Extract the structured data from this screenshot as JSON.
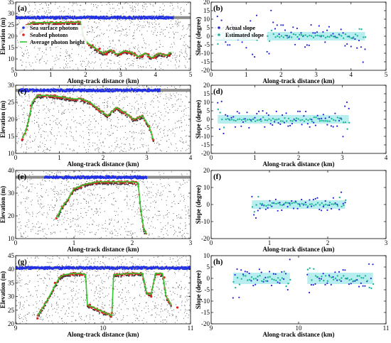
{
  "colors": {
    "sea": "#1f2ee6",
    "seabed": "#e02020",
    "avg": "#2ec82e",
    "actual": "#2424d6",
    "estimated": "#1fb596",
    "noise": "#6a6a6a",
    "band": "#b8eef0"
  },
  "chart_data": [
    {
      "id": "a",
      "type": "scatter",
      "panel_label": "(a)",
      "xlabel": "Along-track distance (km)",
      "ylabel": "Elevation (m)",
      "xlim": [
        0,
        5
      ],
      "ylim": [
        5,
        35
      ],
      "xticks": [
        0,
        1,
        2,
        3,
        4,
        5
      ],
      "yticks": [
        5,
        10,
        15,
        20,
        25,
        30,
        35
      ],
      "legend": {
        "placement": "bottom-left",
        "entries": [
          "Sea surface photons",
          "Seabed photons",
          "Average photon height"
        ]
      },
      "series": [
        {
          "name": "Sea surface photons",
          "kind": "points",
          "color_key": "sea",
          "x": [
            0,
            4.5
          ],
          "y": [
            28.2,
            28.2
          ]
        },
        {
          "name": "Seabed photons",
          "kind": "dots",
          "color_key": "seabed",
          "x": [
            0.15,
            0.3,
            0.5,
            0.8,
            1.0,
            1.3,
            1.6,
            1.8,
            1.95,
            2.2,
            2.4,
            2.6,
            2.8,
            3.0,
            3.2,
            3.4,
            3.6,
            3.8,
            4.0,
            4.2,
            4.4
          ],
          "y": [
            22,
            24.5,
            26,
            26,
            26,
            26,
            26.2,
            26.3,
            24,
            16,
            14.5,
            12,
            13.5,
            12,
            13,
            12.5,
            11,
            12,
            10.5,
            12,
            11.5
          ]
        },
        {
          "name": "Average photon height",
          "kind": "line",
          "color_key": "avg",
          "x": [
            0.12,
            0.25,
            0.45,
            0.7,
            1.0,
            1.3,
            1.6,
            1.85,
            1.92,
            2.05,
            2.3,
            2.5,
            2.7,
            2.9,
            3.1,
            3.3,
            3.5,
            3.7,
            3.9,
            4.1,
            4.3,
            4.45
          ],
          "y": [
            22,
            24.2,
            25.8,
            26,
            26,
            26,
            26.1,
            26.3,
            21,
            17,
            14.5,
            12.5,
            14,
            12,
            13.5,
            13,
            11,
            12.5,
            10.5,
            12.5,
            11.5,
            13
          ]
        }
      ]
    },
    {
      "id": "b",
      "type": "scatter",
      "panel_label": "(b)",
      "xlabel": "Along-track distance (km)",
      "ylabel": "Slope (degree)",
      "xlim": [
        0,
        5
      ],
      "ylim": [
        -20,
        20
      ],
      "xticks": [
        0,
        1,
        2,
        3,
        4,
        5
      ],
      "yticks": [
        -20,
        -15,
        -10,
        -5,
        0,
        5,
        10,
        15,
        20
      ],
      "legend": {
        "placement": "bottom-left",
        "entries": [
          "Actual slope",
          "Estimated slope"
        ]
      },
      "segments": [
        [
          0.12,
          1.3
        ],
        [
          1.6,
          4.4
        ]
      ],
      "series": [
        {
          "name": "Actual slope",
          "color_key": "actual",
          "spread": 7
        },
        {
          "name": "Estimated slope",
          "color_key": "estimated",
          "spread": 3
        }
      ]
    },
    {
      "id": "c",
      "type": "scatter",
      "panel_label": "(c)",
      "xlabel": "Along-track distance (km)",
      "ylabel": "Elevation (m)",
      "xlim": [
        0,
        4
      ],
      "ylim": [
        10,
        30
      ],
      "xticks": [
        0,
        1,
        2,
        3,
        4
      ],
      "yticks": [
        10,
        15,
        20,
        25,
        30
      ],
      "series": [
        {
          "name": "Sea surface photons",
          "kind": "points",
          "color_key": "sea",
          "x": [
            0.1,
            3.3
          ],
          "y": [
            28.5,
            28.5
          ]
        },
        {
          "name": "Seabed photons",
          "kind": "dots",
          "color_key": "seabed",
          "x": [
            0.15,
            0.25,
            0.35,
            0.5,
            0.7,
            0.9,
            1.1,
            1.3,
            1.5,
            1.7,
            1.9,
            2.1,
            2.3,
            2.5,
            2.7,
            2.9,
            3.05,
            3.15
          ],
          "y": [
            14,
            17,
            24,
            27,
            27,
            27,
            26.5,
            26,
            26,
            25,
            23,
            21,
            23,
            22,
            20,
            21,
            18,
            14
          ]
        },
        {
          "name": "Average photon height",
          "kind": "line",
          "color_key": "avg",
          "x": [
            0.15,
            0.22,
            0.3,
            0.38,
            0.5,
            0.7,
            0.9,
            1.1,
            1.3,
            1.5,
            1.7,
            1.9,
            2.1,
            2.3,
            2.5,
            2.7,
            2.9,
            3.05,
            3.15
          ],
          "y": [
            14.5,
            16,
            20,
            25,
            27,
            27,
            26.8,
            26.5,
            26,
            26,
            25,
            23,
            21,
            23.5,
            22,
            20,
            21,
            18,
            14
          ]
        }
      ]
    },
    {
      "id": "d",
      "type": "scatter",
      "panel_label": "(d)",
      "xlabel": "Along-track distance (km)",
      "ylabel": "Slope (degree)",
      "xlim": [
        0,
        4
      ],
      "ylim": [
        -20,
        20
      ],
      "xticks": [
        0,
        1,
        2,
        3,
        4
      ],
      "yticks": [
        -20,
        -15,
        -10,
        -5,
        0,
        5,
        10,
        15,
        20
      ],
      "segments": [
        [
          0.15,
          3.15
        ]
      ],
      "series": [
        {
          "name": "Actual slope",
          "color_key": "actual",
          "spread": 5
        },
        {
          "name": "Estimated slope",
          "color_key": "estimated",
          "spread": 4
        }
      ]
    },
    {
      "id": "e",
      "type": "scatter",
      "panel_label": "(e)",
      "xlabel": "Along-track distance (km)",
      "ylabel": "Elevation (m)",
      "xlim": [
        0,
        3
      ],
      "ylim": [
        10,
        40
      ],
      "xticks": [
        0,
        1,
        2,
        3
      ],
      "yticks": [
        10,
        20,
        30,
        40
      ],
      "series": [
        {
          "name": "Sea surface photons",
          "kind": "points",
          "color_key": "sea",
          "x": [
            0.5,
            2.25
          ],
          "y": [
            37,
            37
          ]
        },
        {
          "name": "Seabed photons",
          "kind": "dots",
          "color_key": "seabed",
          "x": [
            0.7,
            0.8,
            0.9,
            1.0,
            1.2,
            1.4,
            1.6,
            1.8,
            2.0,
            2.1,
            2.15,
            2.2
          ],
          "y": [
            19,
            24,
            27,
            32,
            34,
            35,
            35,
            35,
            35,
            34,
            22,
            14
          ]
        },
        {
          "name": "Average photon height",
          "kind": "line",
          "color_key": "avg",
          "x": [
            0.7,
            0.8,
            0.9,
            1.0,
            1.2,
            1.4,
            1.6,
            1.8,
            2.0,
            2.1,
            2.15,
            2.2,
            2.25
          ],
          "y": [
            19,
            24,
            27.5,
            32,
            34,
            35,
            35,
            35,
            35,
            34.5,
            22,
            14,
            12
          ]
        }
      ]
    },
    {
      "id": "f",
      "type": "scatter",
      "panel_label": "(f)",
      "xlabel": "Along-track distance (km)",
      "ylabel": "Slope (degree)",
      "xlim": [
        0,
        3
      ],
      "ylim": [
        -20,
        20
      ],
      "xticks": [
        0,
        1,
        2,
        3
      ],
      "yticks": [
        -20,
        -10,
        0,
        10,
        20
      ],
      "segments": [
        [
          0.7,
          2.3
        ]
      ],
      "series": [
        {
          "name": "Actual slope",
          "color_key": "actual",
          "spread": 4
        },
        {
          "name": "Estimated slope",
          "color_key": "estimated",
          "spread": 3
        }
      ]
    },
    {
      "id": "g",
      "type": "scatter",
      "panel_label": "(g)",
      "xlabel": "Along-track distance (km)",
      "ylabel": "Elevation (m)",
      "xlim": [
        9,
        11
      ],
      "ylim": [
        20,
        45
      ],
      "xticks": [
        9,
        10,
        11
      ],
      "yticks": [
        20,
        25,
        30,
        35,
        40,
        45
      ],
      "series": [
        {
          "name": "Sea surface photons",
          "kind": "points",
          "color_key": "sea",
          "x": [
            9,
            11
          ],
          "y": [
            40.5,
            40.5
          ]
        },
        {
          "name": "Seabed photons",
          "kind": "dots",
          "color_key": "seabed",
          "x": [
            9.25,
            9.35,
            9.45,
            9.55,
            9.65,
            9.75,
            9.85,
            10.1,
            10.15,
            10.3,
            10.45,
            10.55,
            10.6,
            10.7,
            10.75,
            10.85
          ],
          "y": [
            22,
            28,
            35,
            38,
            38,
            38,
            27,
            24,
            38,
            38,
            38,
            30,
            38,
            37,
            28,
            26
          ]
        },
        {
          "name": "Average photon height",
          "kind": "line",
          "color_key": "avg",
          "x": [
            9.25,
            9.35,
            9.45,
            9.5,
            9.55,
            9.65,
            9.75,
            9.8,
            9.82,
            10.1,
            10.12,
            10.3,
            10.45,
            10.5,
            10.55,
            10.6,
            10.68,
            10.72,
            10.78
          ],
          "y": [
            23,
            28,
            34,
            37,
            38,
            38.5,
            38.5,
            38,
            27,
            23,
            38,
            38.5,
            38.5,
            31,
            31,
            38.5,
            38.5,
            30,
            27
          ]
        }
      ]
    },
    {
      "id": "h",
      "type": "scatter",
      "panel_label": "(h)",
      "xlabel": "Along-track distance (km)",
      "ylabel": "Slope (degree)",
      "xlim": [
        9,
        11
      ],
      "ylim": [
        -20,
        10
      ],
      "xticks": [
        9,
        10,
        11
      ],
      "yticks": [
        -20,
        -15,
        -10,
        -5,
        0,
        5,
        10
      ],
      "segments": [
        [
          9.25,
          9.9
        ],
        [
          10.1,
          10.85
        ]
      ],
      "series": [
        {
          "name": "Actual slope",
          "color_key": "actual",
          "spread": 4
        },
        {
          "name": "Estimated slope",
          "color_key": "estimated",
          "spread": 3
        }
      ]
    }
  ]
}
